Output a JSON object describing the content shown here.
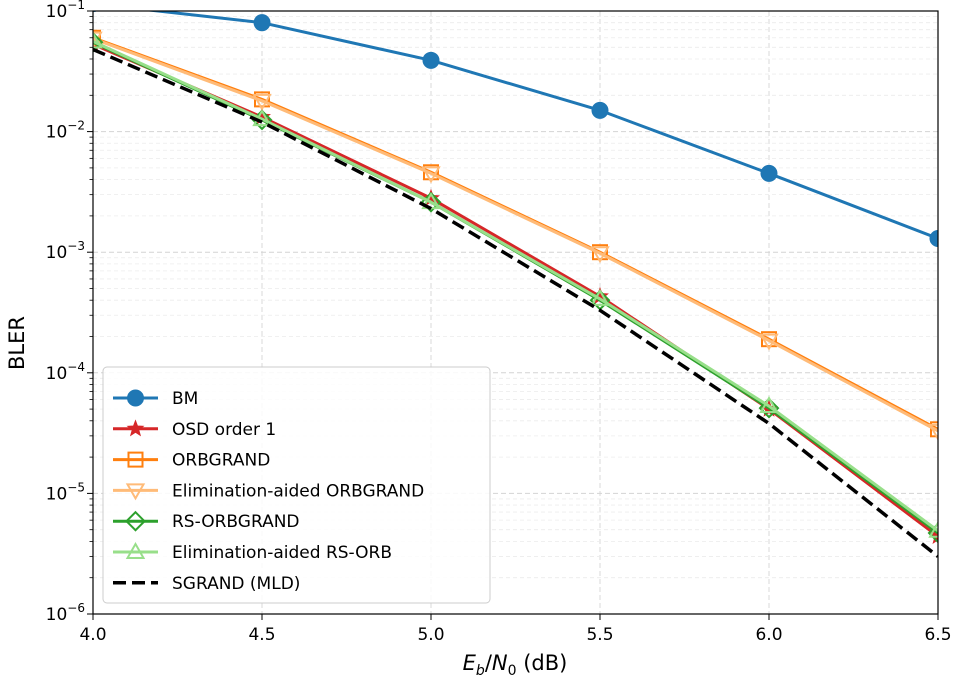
{
  "chart_data": {
    "type": "line",
    "title": "",
    "xlabel": "E_b/N_0 (dB)",
    "xlabel_parts": {
      "E": "E",
      "b": "b",
      "slash": "/",
      "N": "N",
      "zero": "0",
      "unit": " (dB)"
    },
    "ylabel": "BLER",
    "xlim": [
      4.0,
      6.5
    ],
    "ylim_log10": [
      -6,
      -1
    ],
    "yscale": "log",
    "grid": true,
    "legend_position": "lower-left",
    "x_ticks": [
      4.0,
      4.5,
      5.0,
      5.5,
      6.0,
      6.5
    ],
    "x_tick_labels": [
      "4.0",
      "4.5",
      "5.0",
      "5.5",
      "6.0",
      "6.5"
    ],
    "y_ticks": [
      {
        "exp": -1,
        "base": "10",
        "sup": "−1"
      },
      {
        "exp": -2,
        "base": "10",
        "sup": "−2"
      },
      {
        "exp": -3,
        "base": "10",
        "sup": "−3"
      },
      {
        "exp": -4,
        "base": "10",
        "sup": "−4"
      },
      {
        "exp": -5,
        "base": "10",
        "sup": "−5"
      },
      {
        "exp": -6,
        "base": "10",
        "sup": "−6"
      }
    ],
    "series": [
      {
        "name": "BM",
        "color": "#1f77b4",
        "marker": "circle",
        "dashed": false,
        "x": [
          4.0,
          4.5,
          5.0,
          5.5,
          6.0,
          6.5
        ],
        "y": [
          0.115,
          0.08,
          0.039,
          0.015,
          0.0045,
          0.0013
        ]
      },
      {
        "name": "OSD order 1",
        "color": "#d62728",
        "marker": "star",
        "dashed": false,
        "x": [
          4.0,
          4.5,
          5.0,
          5.5,
          6.0,
          6.5
        ],
        "y": [
          0.053,
          0.0132,
          0.0028,
          0.00043,
          5e-05,
          4.4e-06
        ]
      },
      {
        "name": "ORBGRAND",
        "color": "#ff7f0e",
        "marker": "square",
        "dashed": false,
        "x": [
          4.0,
          4.5,
          5.0,
          5.5,
          6.0,
          6.5
        ],
        "y": [
          0.06,
          0.0185,
          0.0046,
          0.001,
          0.00019,
          3.4e-05
        ]
      },
      {
        "name": "Elimination-aided ORBGRAND",
        "color": "#ffbb78",
        "marker": "triangle-down",
        "dashed": false,
        "x": [
          4.0,
          4.5,
          5.0,
          5.5,
          6.0,
          6.5
        ],
        "y": [
          0.059,
          0.018,
          0.0045,
          0.00098,
          0.000185,
          3.3e-05
        ]
      },
      {
        "name": "RS-ORBGRAND",
        "color": "#2ca02c",
        "marker": "diamond",
        "dashed": false,
        "x": [
          4.0,
          4.5,
          5.0,
          5.5,
          6.0,
          6.5
        ],
        "y": [
          0.055,
          0.0125,
          0.0026,
          0.0004,
          5.1e-05,
          4.7e-06
        ]
      },
      {
        "name": "Elimination-aided RS-ORB",
        "color": "#98df8a",
        "marker": "triangle-up",
        "dashed": false,
        "x": [
          4.0,
          4.5,
          5.0,
          5.5,
          6.0,
          6.5
        ],
        "y": [
          0.056,
          0.0127,
          0.0026,
          0.00041,
          5.3e-05,
          4.9e-06
        ]
      },
      {
        "name": "SGRAND (MLD)",
        "color": "#000000",
        "marker": "none",
        "dashed": true,
        "x": [
          4.0,
          4.5,
          5.0,
          5.5,
          6.0,
          6.5
        ],
        "y": [
          0.048,
          0.012,
          0.0023,
          0.00033,
          3.8e-05,
          3e-06
        ]
      }
    ]
  }
}
